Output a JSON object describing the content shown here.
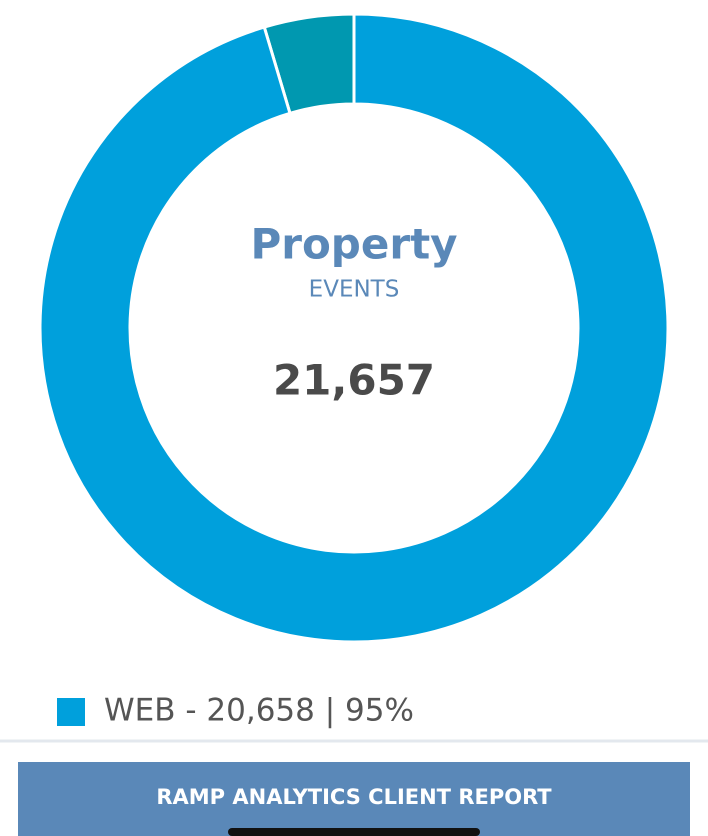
{
  "chart_data": {
    "type": "donut",
    "title": "Property",
    "subtitle": "EVENTS",
    "center_value": {
      "value": 21657,
      "label": "21,657"
    },
    "series": [
      {
        "name": "WEB - 20,658 | 95%",
        "color": "#00a0dc",
        "value": 20658
      },
      {
        "name": null,
        "color": "#0098b0",
        "value": 999
      }
    ]
  },
  "footer": "RAMP ANALYTICS CLIENT REPORT"
}
